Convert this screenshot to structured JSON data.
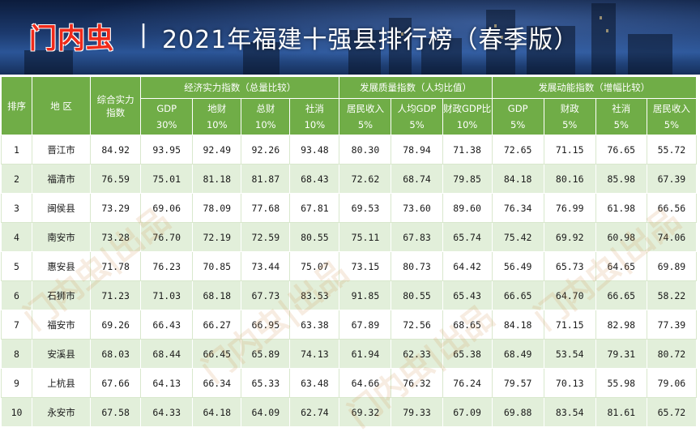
{
  "banner": {
    "brand": "门内虫",
    "separator": "|",
    "title": "2021年福建十强县排行榜（春季版）"
  },
  "table": {
    "headers": {
      "rank": "排序",
      "region": "地 区",
      "composite": "综合实力指数",
      "group_econ": "经济实力指数（总量比较）",
      "group_quality": "发展质量指数（人均比值）",
      "group_momentum": "发展动能指数（增幅比较）",
      "sub": [
        {
          "name": "GDP",
          "weight": "30%"
        },
        {
          "name": "地财",
          "weight": "10%"
        },
        {
          "name": "总财",
          "weight": "10%"
        },
        {
          "name": "社消",
          "weight": "10%"
        },
        {
          "name": "居民收入",
          "weight": "5%"
        },
        {
          "name": "人均GDP",
          "weight": "5%"
        },
        {
          "name": "财政GDP比",
          "weight": "10%"
        },
        {
          "name": "GDP",
          "weight": "5%"
        },
        {
          "name": "财政",
          "weight": "5%"
        },
        {
          "name": "社消",
          "weight": "5%"
        },
        {
          "name": "居民收入",
          "weight": "5%"
        }
      ]
    },
    "rows": [
      {
        "rank": "1",
        "name": "晋江市",
        "composite": "84.92",
        "vals": [
          "93.95",
          "92.49",
          "92.26",
          "93.48",
          "80.30",
          "78.94",
          "71.38",
          "72.65",
          "71.15",
          "76.65",
          "55.72"
        ]
      },
      {
        "rank": "2",
        "name": "福清市",
        "composite": "76.59",
        "vals": [
          "75.01",
          "81.18",
          "81.87",
          "68.43",
          "72.62",
          "68.74",
          "79.85",
          "84.18",
          "80.16",
          "85.98",
          "67.39"
        ]
      },
      {
        "rank": "3",
        "name": "闽侯县",
        "composite": "73.29",
        "vals": [
          "69.06",
          "78.09",
          "77.68",
          "67.81",
          "69.53",
          "73.60",
          "89.60",
          "76.34",
          "76.99",
          "61.98",
          "66.56"
        ]
      },
      {
        "rank": "4",
        "name": "南安市",
        "composite": "73.28",
        "vals": [
          "76.70",
          "72.19",
          "72.59",
          "80.55",
          "75.11",
          "67.83",
          "65.74",
          "75.42",
          "69.92",
          "60.98",
          "74.06"
        ]
      },
      {
        "rank": "5",
        "name": "惠安县",
        "composite": "71.78",
        "vals": [
          "76.23",
          "70.85",
          "73.44",
          "75.07",
          "73.15",
          "80.73",
          "64.42",
          "56.49",
          "65.73",
          "64.65",
          "69.89"
        ]
      },
      {
        "rank": "6",
        "name": "石狮市",
        "composite": "71.23",
        "vals": [
          "71.03",
          "68.18",
          "67.73",
          "83.53",
          "91.85",
          "80.55",
          "65.43",
          "66.65",
          "64.70",
          "66.65",
          "58.22"
        ]
      },
      {
        "rank": "7",
        "name": "福安市",
        "composite": "69.26",
        "vals": [
          "66.43",
          "66.27",
          "66.95",
          "63.38",
          "67.89",
          "72.56",
          "68.65",
          "84.18",
          "71.15",
          "82.98",
          "77.39"
        ]
      },
      {
        "rank": "8",
        "name": "安溪县",
        "composite": "68.03",
        "vals": [
          "68.44",
          "66.45",
          "65.89",
          "74.13",
          "61.94",
          "62.33",
          "65.38",
          "68.49",
          "53.54",
          "79.31",
          "80.72"
        ]
      },
      {
        "rank": "9",
        "name": "上杭县",
        "composite": "67.66",
        "vals": [
          "64.13",
          "66.34",
          "65.33",
          "63.48",
          "64.66",
          "76.32",
          "76.24",
          "79.57",
          "70.13",
          "55.98",
          "79.06"
        ]
      },
      {
        "rank": "10",
        "name": "永安市",
        "composite": "67.58",
        "vals": [
          "64.33",
          "64.18",
          "64.09",
          "62.74",
          "69.32",
          "79.33",
          "67.09",
          "69.88",
          "83.54",
          "81.61",
          "65.72"
        ]
      }
    ]
  },
  "watermark": "门内虫|出品",
  "colors": {
    "header_green": "#70ad47",
    "row_alt": "#e2efda",
    "brand_red": "#f02a1a"
  }
}
